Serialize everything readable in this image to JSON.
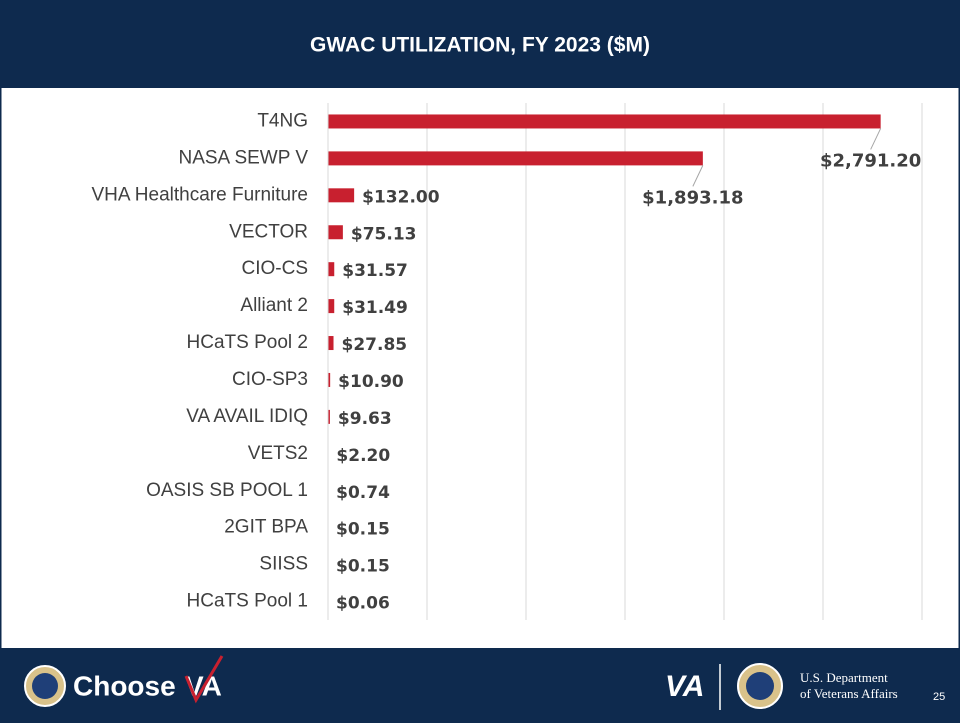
{
  "chart_data": {
    "type": "barh",
    "title": "GWAC UTILIZATION, FY 2023 ($M)",
    "categories": [
      "T4NG",
      "NASA SEWP V",
      "VHA Healthcare Furniture",
      "VECTOR",
      "CIO-CS",
      "Alliant 2",
      "HCaTS Pool 2",
      "CIO-SP3",
      "VA AVAIL IDIQ",
      "VETS2",
      "OASIS SB POOL 1",
      "2GIT BPA",
      "SIISS",
      "HCaTS Pool 1"
    ],
    "values": [
      2791.2,
      1893.18,
      132.0,
      75.13,
      31.57,
      31.49,
      27.85,
      10.9,
      9.63,
      2.2,
      0.74,
      0.15,
      0.15,
      0.06
    ],
    "value_labels": [
      "$2,791.20",
      "$1,893.18",
      "$132.00",
      "$75.13",
      "$31.57",
      "$31.49",
      "$27.85",
      "$10.90",
      "$9.63",
      "$2.20",
      "$0.74",
      "$0.15",
      "$0.15",
      "$0.06"
    ],
    "color": "#c8202f",
    "xlim": [
      0,
      3000
    ],
    "xticks": [
      0,
      500,
      1000,
      1500,
      2000,
      2500,
      3000
    ],
    "grid": true
  },
  "footer": {
    "brand": "Choose",
    "brand_mark": "VA",
    "va": "VA",
    "department_line1": "U.S. Department",
    "department_line2": "of Veterans Affairs",
    "page": "25"
  }
}
